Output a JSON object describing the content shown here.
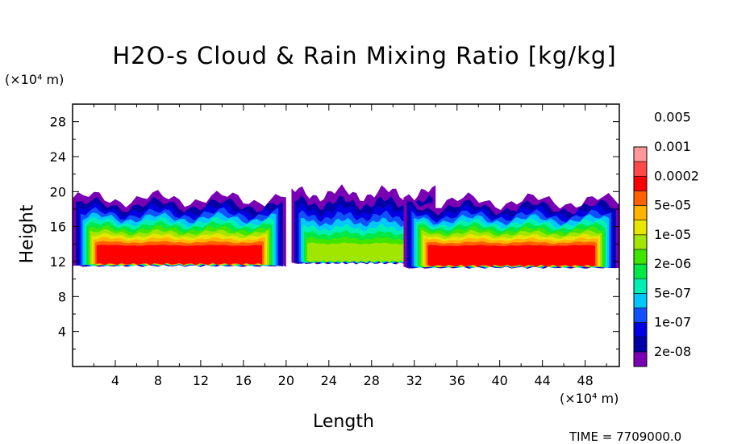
{
  "chart_data": {
    "type": "heatmap",
    "title": "H2O-s Cloud & Rain Mixing Ratio [kg/kg]",
    "xlabel": "Length",
    "ylabel": "Height",
    "x_unit": "(×10⁴ m)",
    "y_unit": "(×10⁴ m)",
    "xlim": [
      0,
      51.2
    ],
    "ylim": [
      0,
      30
    ],
    "x_ticks": [
      "4",
      "8",
      "12",
      "16",
      "20",
      "24",
      "28",
      "32",
      "36",
      "40",
      "44",
      "48"
    ],
    "y_ticks": [
      "4",
      "8",
      "12",
      "16",
      "20",
      "24",
      "28"
    ],
    "colorbar_levels": [
      "2e-08",
      "1e-07",
      "5e-07",
      "2e-06",
      "1e-05",
      "5e-05",
      "0.0002",
      "0.001",
      "0.005"
    ],
    "colorbar_colors": [
      "#7a00b4",
      "#0000a6",
      "#0000e0",
      "#1050ff",
      "#00c8ff",
      "#00f0b4",
      "#00e848",
      "#40e600",
      "#a0e600",
      "#e6e600",
      "#ffb400",
      "#ff6000",
      "#ff0000",
      "#ff4848",
      "#ff9898"
    ],
    "cloud_regions": [
      {
        "x0": 0,
        "x1": 20,
        "y_base": 11.5,
        "y_top": 19.2,
        "peak_band": 13
      },
      {
        "x0": 20.5,
        "x1": 34,
        "y_base": 11.8,
        "y_top": 19.8,
        "peak_band": 9
      },
      {
        "x0": 31,
        "x1": 51.2,
        "y_base": 11.3,
        "y_top": 18.9,
        "peak_band": 13
      }
    ],
    "time_label": "TIME = 7709000.0"
  }
}
